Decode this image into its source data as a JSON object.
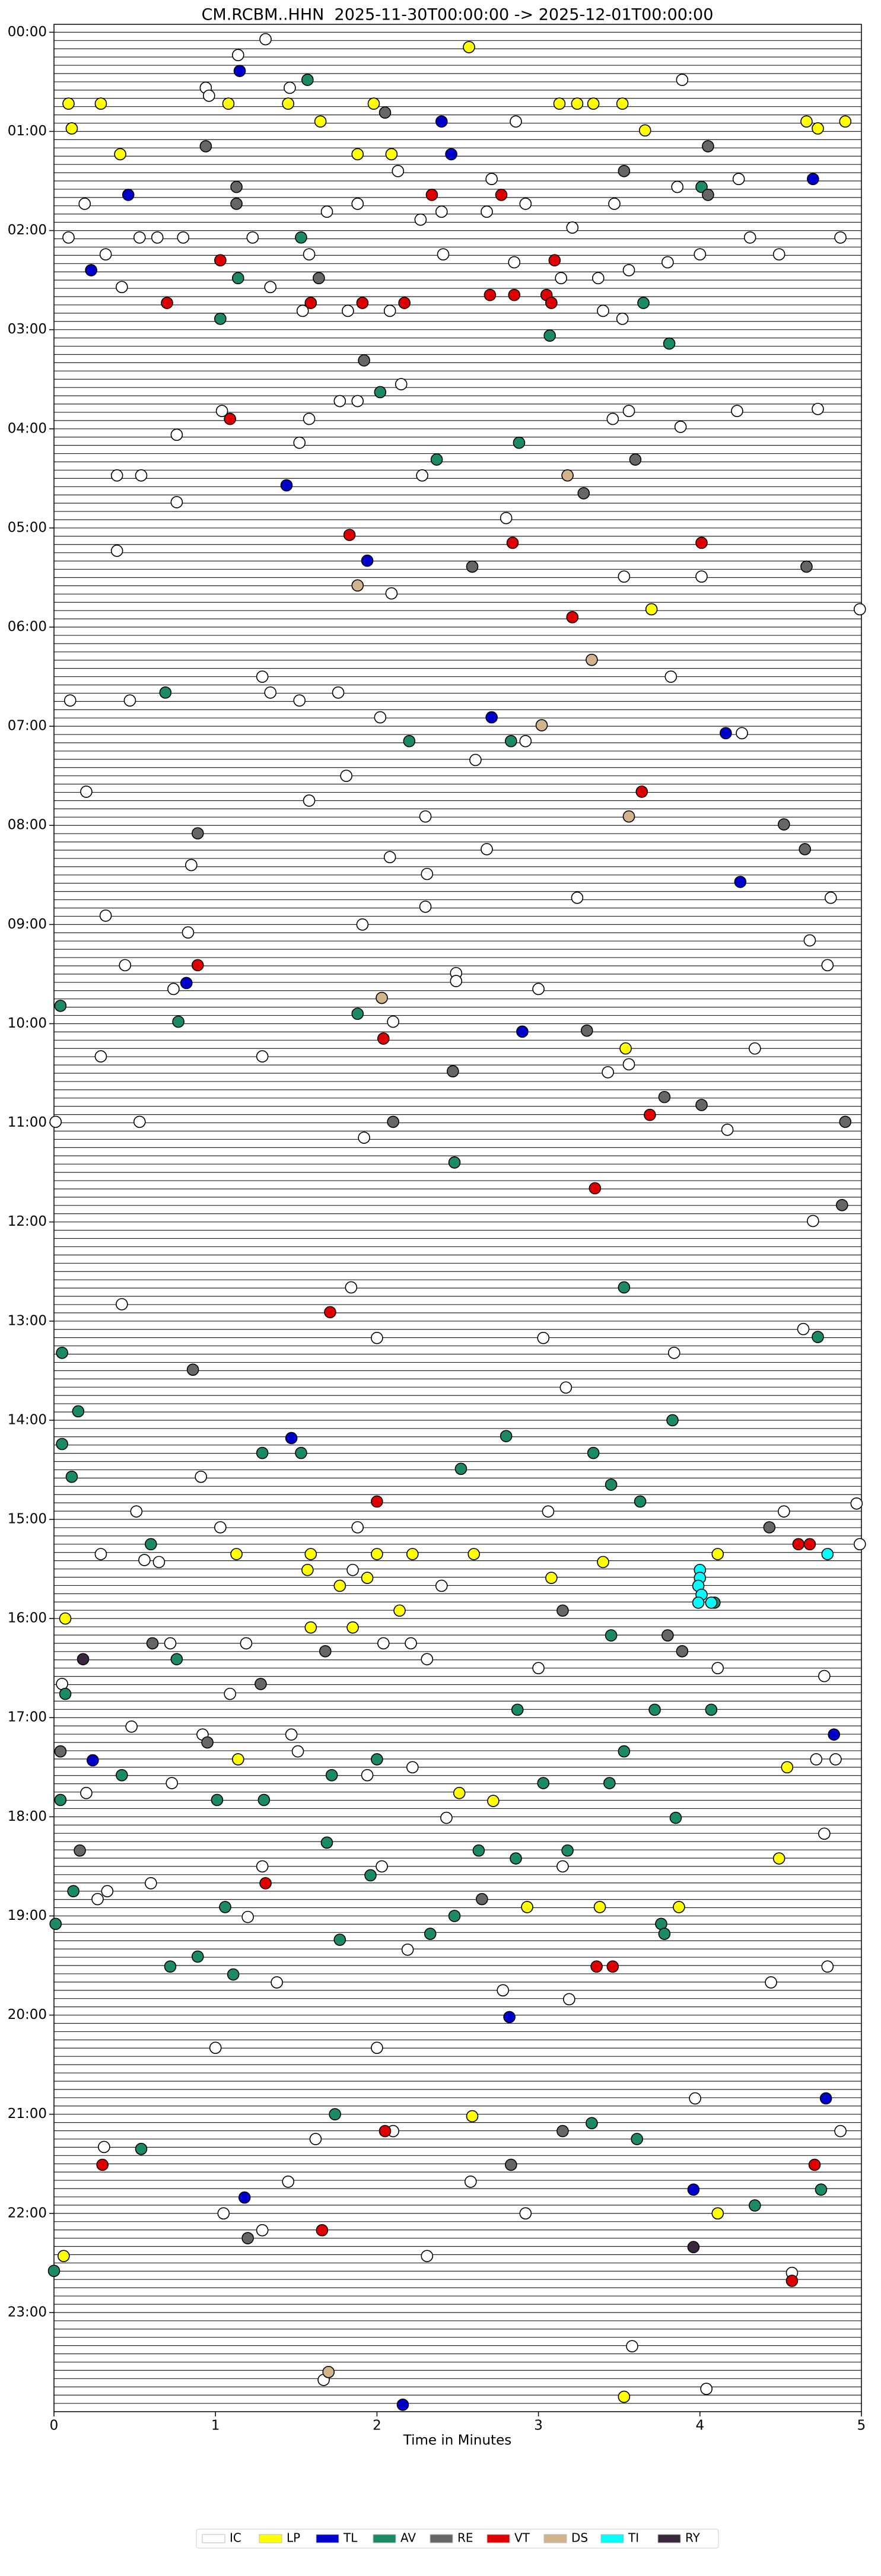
{
  "chart_data": {
    "type": "scatter",
    "title": "CM.RCBM..HHN  2025-11-30T00:00:00 -> 2025-12-01T00:00:00",
    "xlabel": "Time in Minutes",
    "xlim": [
      0,
      5
    ],
    "xticks": [
      0,
      1,
      2,
      3,
      4,
      5
    ],
    "ylim": [
      -0.08,
      24
    ],
    "y_inverted": true,
    "yticks": [
      {
        "value": 0,
        "label": "00:00"
      },
      {
        "value": 1,
        "label": "01:00"
      },
      {
        "value": 2,
        "label": "02:00"
      },
      {
        "value": 3,
        "label": "03:00"
      },
      {
        "value": 4,
        "label": "04:00"
      },
      {
        "value": 5,
        "label": "05:00"
      },
      {
        "value": 6,
        "label": "06:00"
      },
      {
        "value": 7,
        "label": "07:00"
      },
      {
        "value": 8,
        "label": "08:00"
      },
      {
        "value": 9,
        "label": "09:00"
      },
      {
        "value": 10,
        "label": "10:00"
      },
      {
        "value": 11,
        "label": "11:00"
      },
      {
        "value": 12,
        "label": "12:00"
      },
      {
        "value": 13,
        "label": "13:00"
      },
      {
        "value": 14,
        "label": "14:00"
      },
      {
        "value": 15,
        "label": "15:00"
      },
      {
        "value": 16,
        "label": "16:00"
      },
      {
        "value": 17,
        "label": "17:00"
      },
      {
        "value": 18,
        "label": "18:00"
      },
      {
        "value": 19,
        "label": "19:00"
      },
      {
        "value": 20,
        "label": "20:00"
      },
      {
        "value": 21,
        "label": "21:00"
      },
      {
        "value": 22,
        "label": "22:00"
      },
      {
        "value": 23,
        "label": "23:00"
      }
    ],
    "legend": "bottom",
    "series": [
      {
        "name": "IC",
        "color": "#ffffff",
        "x": [
          1.31,
          1.14,
          0.94,
          1.46,
          3.89,
          0.96,
          2.86,
          2.13,
          2.71,
          3.86,
          4.24,
          0.19,
          1.69,
          1.88,
          2.4,
          2.68,
          2.92,
          3.47,
          2.27,
          3.21,
          0.09,
          0.53,
          0.64,
          0.8,
          1.23,
          1.58,
          4.31,
          4.87,
          0.32,
          4.49,
          2.41,
          2.85,
          3.56,
          4.0,
          3.8,
          0.42,
          3.14,
          3.37,
          1.34,
          3.4,
          3.52,
          1.54,
          2.08,
          1.82,
          2.15,
          1.77,
          1.04,
          3.56,
          3.88,
          4.23,
          4.73,
          1.52,
          1.88,
          0.76,
          1.58,
          3.46,
          0.39,
          0.54,
          2.28,
          0.76,
          2.8,
          0.39,
          4.01,
          3.53,
          2.09,
          4.99,
          1.29,
          1.34,
          0.1,
          0.47,
          1.52,
          1.76,
          2.02,
          3.82,
          4.26,
          2.92,
          2.61,
          1.81,
          1.58,
          0.2,
          2.3,
          2.68,
          2.08,
          0.85,
          2.31,
          3.24,
          4.81,
          0.32,
          1.91,
          2.3,
          0.83,
          4.68,
          4.79,
          2.49,
          2.49,
          0.74,
          3.0,
          0.44,
          2.1,
          1.29,
          0.29,
          4.34,
          3.56,
          3.43,
          4.17,
          0.01,
          0.53,
          1.92,
          4.7,
          0.42,
          1.84,
          2.0,
          3.03,
          3.84,
          4.64,
          3.17,
          0.91,
          0.51,
          1.03,
          1.88,
          3.06,
          0.29,
          4.52,
          4.97,
          4.99,
          0.56,
          0.65,
          1.85,
          2.4,
          0.72,
          1.19,
          2.04,
          2.21,
          2.31,
          3.0,
          4.11,
          4.77,
          0.05,
          1.09,
          0.48,
          0.92,
          1.47,
          1.51,
          2.22,
          4.84,
          4.72,
          0.73,
          1.94,
          0.2,
          2.43,
          4.77,
          1.29,
          0.6,
          2.03,
          3.15,
          0.27,
          0.33,
          1.2,
          2.19,
          1.38,
          2.78,
          3.19,
          4.44,
          4.79,
          1.0,
          2.0,
          3.97,
          4.87,
          0.31,
          1.62,
          2.1,
          1.45,
          2.58,
          1.05,
          2.92,
          1.29,
          2.31,
          4.57,
          3.58,
          4.04,
          1.67
        ],
        "y": [
          0.07,
          0.23,
          0.56,
          0.56,
          0.48,
          0.64,
          0.9,
          1.4,
          1.48,
          1.56,
          1.48,
          1.73,
          1.81,
          1.73,
          1.81,
          1.81,
          1.73,
          1.73,
          1.89,
          1.97,
          2.07,
          2.07,
          2.07,
          2.07,
          2.07,
          2.24,
          2.07,
          2.07,
          2.24,
          2.24,
          2.24,
          2.32,
          2.4,
          2.24,
          2.32,
          2.57,
          2.48,
          2.48,
          2.57,
          2.81,
          2.89,
          2.81,
          2.81,
          2.81,
          3.55,
          3.72,
          3.82,
          3.82,
          3.98,
          3.82,
          3.8,
          4.14,
          3.72,
          4.06,
          3.9,
          3.9,
          4.47,
          4.47,
          4.47,
          4.74,
          4.9,
          5.23,
          5.49,
          5.49,
          5.66,
          5.82,
          6.5,
          6.66,
          6.74,
          6.74,
          6.74,
          6.66,
          6.91,
          6.5,
          7.07,
          7.15,
          7.34,
          7.5,
          7.75,
          7.66,
          7.91,
          8.24,
          8.32,
          8.4,
          8.49,
          8.73,
          8.73,
          8.91,
          9.0,
          8.82,
          9.08,
          9.16,
          9.41,
          9.49,
          9.57,
          9.65,
          9.65,
          9.41,
          9.98,
          10.33,
          10.33,
          10.25,
          10.41,
          10.49,
          11.07,
          10.99,
          10.99,
          11.15,
          11.99,
          12.83,
          12.66,
          13.17,
          13.17,
          13.32,
          13.08,
          13.67,
          14.57,
          14.92,
          15.08,
          15.08,
          14.92,
          15.35,
          14.92,
          14.84,
          15.25,
          15.41,
          15.43,
          15.51,
          15.67,
          16.25,
          16.25,
          16.25,
          16.25,
          16.41,
          16.5,
          16.5,
          16.58,
          16.66,
          16.76,
          17.09,
          17.17,
          17.17,
          17.34,
          17.5,
          17.42,
          17.42,
          17.66,
          17.58,
          17.76,
          18.01,
          18.17,
          18.5,
          18.67,
          18.5,
          18.5,
          18.83,
          18.75,
          19.01,
          19.34,
          19.67,
          19.75,
          19.84,
          19.67,
          19.51,
          20.33,
          20.33,
          20.84,
          21.17,
          21.33,
          21.25,
          21.17,
          21.68,
          21.68,
          22.0,
          22.0,
          22.17,
          22.43,
          22.6,
          23.34,
          23.77,
          23.68
        ]
      },
      {
        "name": "LP",
        "color": "#ffff00",
        "x": [
          2.57,
          0.09,
          0.29,
          1.08,
          1.45,
          1.98,
          3.13,
          3.24,
          3.34,
          3.52,
          1.65,
          0.11,
          3.66,
          4.66,
          4.73,
          4.9,
          0.41,
          1.88,
          2.09,
          3.7,
          3.54,
          3.4,
          4.11,
          1.13,
          1.59,
          2.0,
          2.22,
          2.6,
          1.57,
          1.77,
          1.94,
          3.08,
          0.07,
          1.59,
          1.85,
          2.14,
          1.14,
          4.54,
          2.51,
          2.72,
          2.93,
          3.38,
          3.87,
          4.49,
          2.59,
          4.11,
          0.06,
          3.53
        ],
        "y": [
          0.15,
          0.72,
          0.72,
          0.72,
          0.72,
          0.72,
          0.72,
          0.72,
          0.72,
          0.72,
          0.9,
          0.97,
          0.99,
          0.9,
          0.97,
          0.9,
          1.23,
          1.23,
          1.23,
          5.82,
          10.25,
          15.43,
          15.35,
          15.35,
          15.35,
          15.35,
          15.35,
          15.35,
          15.51,
          15.67,
          15.59,
          15.59,
          16.0,
          16.09,
          16.09,
          15.92,
          17.42,
          17.5,
          17.76,
          17.84,
          18.91,
          18.91,
          18.91,
          18.42,
          21.02,
          22.0,
          22.43,
          23.85
        ]
      },
      {
        "name": "TL",
        "color": "#0000cc",
        "x": [
          1.15,
          2.4,
          0.46,
          2.46,
          4.7,
          0.23,
          1.44,
          1.94,
          2.71,
          4.16,
          4.25,
          0.82,
          2.9,
          1.47,
          0.24,
          4.83,
          2.82,
          4.78,
          1.18,
          3.96,
          2.16
        ],
        "y": [
          0.39,
          0.9,
          1.64,
          1.23,
          1.48,
          2.4,
          4.57,
          5.33,
          6.91,
          7.07,
          8.57,
          9.59,
          10.08,
          14.18,
          17.43,
          17.17,
          20.02,
          20.84,
          21.84,
          21.76,
          23.93
        ]
      },
      {
        "name": "AV",
        "color": "#1b8a67",
        "x": [
          1.57,
          4.01,
          1.53,
          1.14,
          1.03,
          3.65,
          3.07,
          3.81,
          2.02,
          2.88,
          2.37,
          0.69,
          2.2,
          2.83,
          0.04,
          0.77,
          1.88,
          2.48,
          3.53,
          0.05,
          4.73,
          0.15,
          0.05,
          3.83,
          2.8,
          1.29,
          1.53,
          3.34,
          0.11,
          2.52,
          3.45,
          3.63,
          0.6,
          4.09,
          3.45,
          0.76,
          0.07,
          3.72,
          2.87,
          4.07,
          0.42,
          3.53,
          0.04,
          2.0,
          1.72,
          1.01,
          1.3,
          3.03,
          3.44,
          3.85,
          1.69,
          2.63,
          3.18,
          2.86,
          1.96,
          0.12,
          1.06,
          0.01,
          2.48,
          3.76,
          1.77,
          2.33,
          3.78,
          0.89,
          0.72,
          1.11,
          1.74,
          3.33,
          3.61,
          0.54,
          4.34,
          4.75,
          0.0
        ],
        "y": [
          0.48,
          1.56,
          2.07,
          2.48,
          2.89,
          2.73,
          3.06,
          3.14,
          3.63,
          4.14,
          4.31,
          6.66,
          7.15,
          7.15,
          9.82,
          9.98,
          9.9,
          11.4,
          12.66,
          13.32,
          13.16,
          13.91,
          14.24,
          14.0,
          14.16,
          14.33,
          14.33,
          14.33,
          14.57,
          14.49,
          14.65,
          14.82,
          15.25,
          15.84,
          16.17,
          16.41,
          16.76,
          16.92,
          16.92,
          16.92,
          17.58,
          17.34,
          17.83,
          17.42,
          17.58,
          17.83,
          17.83,
          17.66,
          17.66,
          18.01,
          18.26,
          18.34,
          18.34,
          18.42,
          18.59,
          18.75,
          18.91,
          19.08,
          19.0,
          19.08,
          19.24,
          19.18,
          19.18,
          19.41,
          19.51,
          19.59,
          21.0,
          21.09,
          21.25,
          21.35,
          21.92,
          21.76,
          22.58
        ]
      },
      {
        "name": "RE",
        "color": "#666666",
        "x": [
          2.05,
          0.94,
          4.05,
          3.53,
          1.13,
          1.13,
          4.05,
          1.64,
          1.92,
          3.6,
          3.28,
          2.59,
          4.66,
          4.52,
          0.89,
          4.65,
          3.3,
          2.47,
          3.78,
          4.01,
          2.1,
          4.9,
          4.88,
          0.86,
          4.43,
          3.15,
          3.89,
          1.68,
          3.8,
          0.61,
          1.28,
          0.04,
          0.95,
          0.16,
          2.65,
          2.83,
          3.15,
          1.2
        ],
        "y": [
          0.81,
          1.15,
          1.15,
          1.4,
          1.56,
          1.73,
          1.64,
          2.48,
          3.31,
          4.31,
          4.65,
          5.39,
          5.39,
          7.99,
          8.08,
          8.24,
          10.07,
          10.48,
          10.74,
          10.82,
          10.99,
          10.99,
          11.83,
          13.49,
          15.08,
          15.92,
          16.33,
          16.33,
          16.17,
          16.25,
          16.66,
          17.34,
          17.25,
          18.34,
          18.83,
          21.51,
          21.17,
          22.25
        ]
      },
      {
        "name": "VT",
        "color": "#e00000",
        "x": [
          2.34,
          2.77,
          1.03,
          1.59,
          1.91,
          2.17,
          0.7,
          2.7,
          2.85,
          3.05,
          3.08,
          3.1,
          1.09,
          1.83,
          2.84,
          4.01,
          3.21,
          3.64,
          0.89,
          2.04,
          3.69,
          3.35,
          1.71,
          2.0,
          4.61,
          4.68,
          1.31,
          3.36,
          3.46,
          2.05,
          0.3,
          4.71,
          1.66,
          4.57
        ],
        "y": [
          1.64,
          1.64,
          2.3,
          2.73,
          2.73,
          2.73,
          2.73,
          2.65,
          2.65,
          2.65,
          2.73,
          2.3,
          3.9,
          5.07,
          5.15,
          5.15,
          5.9,
          7.66,
          9.41,
          10.15,
          10.92,
          11.66,
          12.91,
          14.82,
          15.25,
          15.25,
          18.67,
          19.51,
          19.51,
          21.17,
          21.51,
          21.51,
          22.17,
          22.68
        ]
      },
      {
        "name": "DS",
        "color": "#d2b48c",
        "x": [
          1.88,
          3.18,
          3.33,
          2.03,
          3.02,
          3.56,
          1.7
        ],
        "y": [
          5.58,
          4.47,
          6.33,
          9.74,
          6.99,
          7.91,
          23.6
        ]
      },
      {
        "name": "TI",
        "color": "#00ffff",
        "x": [
          4.0,
          4.0,
          3.99,
          4.01,
          3.99,
          4.07,
          4.79
        ],
        "y": [
          15.51,
          15.59,
          15.67,
          15.76,
          15.84,
          15.84,
          15.35
        ]
      },
      {
        "name": "RY",
        "color": "#3b2640",
        "x": [
          0.18,
          3.96
        ],
        "y": [
          16.41,
          22.34
        ]
      }
    ]
  }
}
